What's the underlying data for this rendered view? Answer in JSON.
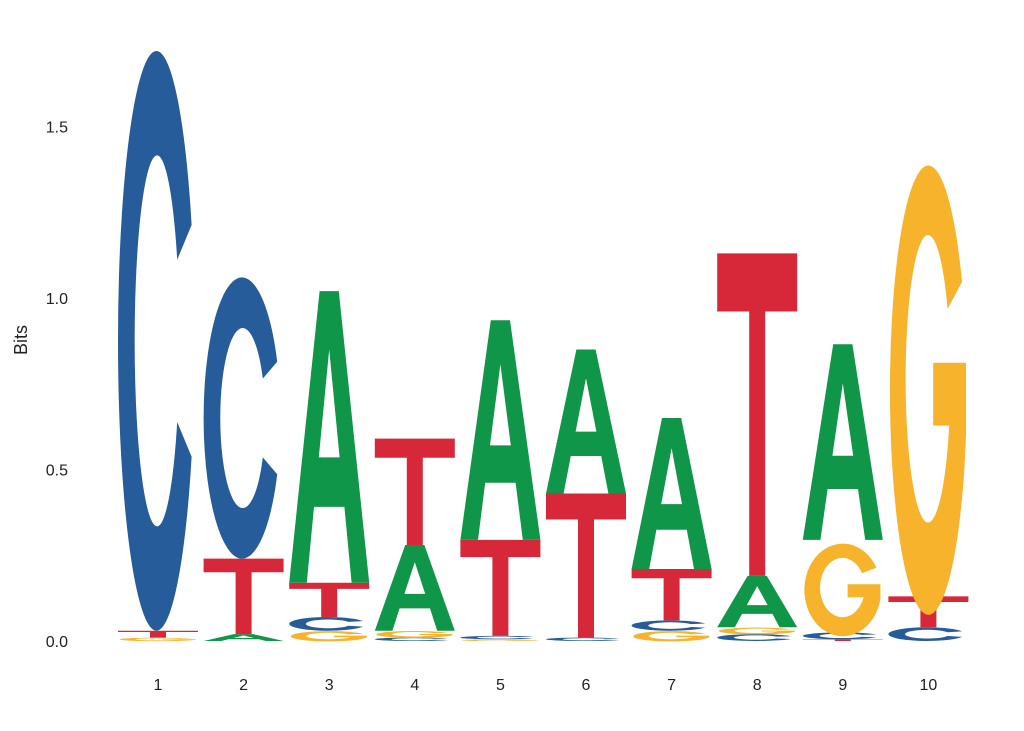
{
  "chart_data": {
    "type": "sequence-logo",
    "ylabel": "Bits",
    "xlabel": "",
    "ylim": [
      0,
      1.85
    ],
    "yticks": [
      "0.0",
      "0.5",
      "1.0",
      "1.5"
    ],
    "ytick_values": [
      0,
      0.5,
      1.0,
      1.5
    ],
    "grid": false,
    "colors": {
      "A": "#109648",
      "C": "#255C99",
      "G": "#F7B32B",
      "T": "#D62839"
    },
    "positions": [
      {
        "label": "1",
        "stack": [
          {
            "base": "G",
            "bits": 0.01
          },
          {
            "base": "T",
            "bits": 0.02
          },
          {
            "base": "C",
            "bits": 1.69
          }
        ]
      },
      {
        "label": "2",
        "stack": [
          {
            "base": "A",
            "bits": 0.02
          },
          {
            "base": "T",
            "bits": 0.22
          },
          {
            "base": "C",
            "bits": 0.82
          }
        ]
      },
      {
        "label": "3",
        "stack": [
          {
            "base": "G",
            "bits": 0.03
          },
          {
            "base": "C",
            "bits": 0.04
          },
          {
            "base": "T",
            "bits": 0.1
          },
          {
            "base": "A",
            "bits": 0.85
          }
        ]
      },
      {
        "label": "4",
        "stack": [
          {
            "base": "C",
            "bits": 0.01
          },
          {
            "base": "G",
            "bits": 0.02
          },
          {
            "base": "A",
            "bits": 0.25
          },
          {
            "base": "T",
            "bits": 0.31
          }
        ]
      },
      {
        "label": "5",
        "stack": [
          {
            "base": "G",
            "bits": 0.005
          },
          {
            "base": "C",
            "bits": 0.01
          },
          {
            "base": "T",
            "bits": 0.28
          },
          {
            "base": "A",
            "bits": 0.64
          }
        ]
      },
      {
        "label": "6",
        "stack": [
          {
            "base": "C",
            "bits": 0.01
          },
          {
            "base": "T",
            "bits": 0.42
          },
          {
            "base": "A",
            "bits": 0.42
          }
        ]
      },
      {
        "label": "7",
        "stack": [
          {
            "base": "G",
            "bits": 0.03
          },
          {
            "base": "C",
            "bits": 0.03
          },
          {
            "base": "T",
            "bits": 0.15
          },
          {
            "base": "A",
            "bits": 0.44
          }
        ]
      },
      {
        "label": "8",
        "stack": [
          {
            "base": "C",
            "bits": 0.02
          },
          {
            "base": "G",
            "bits": 0.02
          },
          {
            "base": "A",
            "bits": 0.15
          },
          {
            "base": "T",
            "bits": 0.94
          }
        ]
      },
      {
        "label": "9",
        "stack": [
          {
            "base": "T",
            "bits": 0.005
          },
          {
            "base": "C",
            "bits": 0.02
          },
          {
            "base": "G",
            "bits": 0.27
          },
          {
            "base": "A",
            "bits": 0.57
          }
        ]
      },
      {
        "label": "10",
        "stack": [
          {
            "base": "C",
            "bits": 0.04
          },
          {
            "base": "T",
            "bits": 0.09
          },
          {
            "base": "G",
            "bits": 1.31
          }
        ]
      }
    ]
  }
}
